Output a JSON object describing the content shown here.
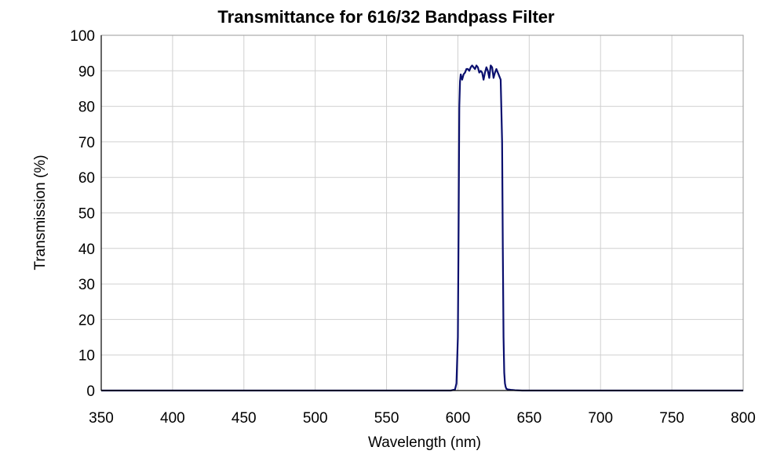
{
  "chart_data": {
    "type": "line",
    "title": "Transmittance for 616/32 Bandpass Filter",
    "xlabel": "Wavelength (nm)",
    "ylabel": "Transmission (%)",
    "xlim": [
      350,
      800
    ],
    "ylim": [
      0,
      100
    ],
    "xticks": [
      350,
      400,
      450,
      500,
      550,
      600,
      650,
      700,
      750,
      800
    ],
    "yticks": [
      0,
      10,
      20,
      30,
      40,
      50,
      60,
      70,
      80,
      90,
      100
    ],
    "grid": true,
    "colors": {
      "series": "#0a0f6e",
      "grid": "#d0d0d0",
      "frame": "#9a9a9a"
    },
    "series": [
      {
        "x": [
          350,
          400,
          450,
          500,
          550,
          595,
          598,
          599,
          600,
          600.5,
          601,
          601.5,
          602,
          603,
          604,
          605,
          606,
          607,
          608,
          609,
          610,
          611,
          612,
          613,
          614,
          615,
          616,
          617,
          618,
          619,
          620,
          621,
          622,
          623,
          624,
          625,
          626,
          627,
          628,
          629,
          630,
          631,
          631.5,
          632,
          632.5,
          633,
          633.5,
          634,
          635,
          637,
          640,
          645,
          700,
          750,
          800
        ],
        "y": [
          0,
          0,
          0,
          0,
          0,
          0,
          0.3,
          2,
          15,
          45,
          80,
          87,
          89,
          87.5,
          89,
          89.5,
          90.5,
          90.5,
          90,
          91,
          91.5,
          91,
          90.5,
          91.5,
          91,
          89.5,
          90,
          89.5,
          87.5,
          89.5,
          91,
          90,
          88,
          91.5,
          91,
          88,
          89.5,
          90.5,
          89.5,
          88.5,
          87.5,
          70,
          40,
          15,
          5,
          2,
          1,
          0.5,
          0.3,
          0.2,
          0.1,
          0,
          0,
          0,
          0
        ]
      }
    ]
  }
}
